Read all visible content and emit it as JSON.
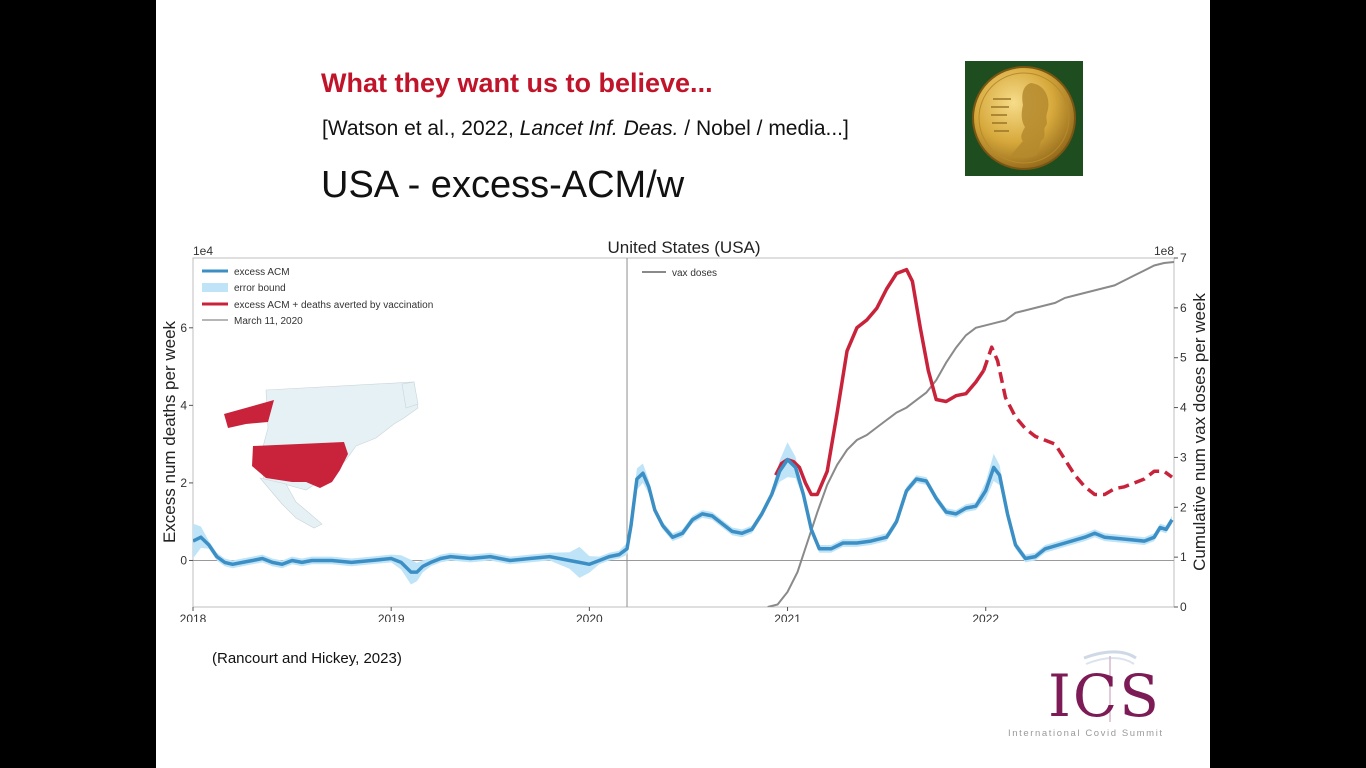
{
  "slide": {
    "headline": "What they want us to believe...",
    "citation_pre": "[Watson et al., 2022, ",
    "citation_em": "Lancet Inf. Deas.",
    "citation_post": " / Nobel / media...]",
    "subtitle": "USA  -  excess-ACM/w",
    "credit": "(Rancourt and Hickey, 2023)",
    "logo_text": "ICS",
    "logo_subtitle": "International Covid Summit",
    "medal_icon": "nobel-medal-icon"
  },
  "colors": {
    "headline": "#c0142b",
    "blue": "#3c8fc5",
    "red": "#c8233b",
    "band": "#bfe4f7",
    "gray": "#8a8a8a",
    "logo": "#7c1b55",
    "map_country": "#c8233b",
    "map_land": "#e6f1f5"
  },
  "chart_data": {
    "type": "line",
    "title": "United States (USA)",
    "ylabel": "Excess num deaths per week",
    "y2label": "Cumulative num vax doses per week",
    "ylim": [
      -1.2,
      7.8
    ],
    "y_scale_label": "1e4",
    "y2lim": [
      0,
      7
    ],
    "y2_scale_label": "1e8",
    "xlim": [
      2018.0,
      2022.95
    ],
    "x_ticks": [
      2018,
      2019,
      2020,
      2021,
      2022
    ],
    "x_tick_labels": [
      "2018",
      "2019",
      "2020",
      "2021",
      "2022"
    ],
    "y_ticks": [
      0,
      2,
      4,
      6
    ],
    "y_tick_labels": [
      "0",
      "2",
      "4",
      "6"
    ],
    "y2_ticks": [
      0,
      1,
      2,
      3,
      4,
      5,
      6,
      7
    ],
    "y2_tick_labels": [
      "0",
      "1",
      "2",
      "3",
      "4",
      "5",
      "6",
      "7"
    ],
    "vertical_line_x": 2020.19,
    "legend_left": [
      "excess ACM",
      "error bound",
      "excess ACM + deaths averted by vaccination",
      "March 11, 2020"
    ],
    "legend_right": [
      "vax doses"
    ],
    "excess_acm": [
      [
        2018.0,
        0.5
      ],
      [
        2018.04,
        0.6
      ],
      [
        2018.08,
        0.4
      ],
      [
        2018.12,
        0.1
      ],
      [
        2018.16,
        -0.05
      ],
      [
        2018.2,
        -0.1
      ],
      [
        2018.25,
        -0.05
      ],
      [
        2018.3,
        0.0
      ],
      [
        2018.35,
        0.05
      ],
      [
        2018.4,
        -0.05
      ],
      [
        2018.45,
        -0.1
      ],
      [
        2018.5,
        0.0
      ],
      [
        2018.55,
        -0.05
      ],
      [
        2018.6,
        0.0
      ],
      [
        2018.7,
        0.0
      ],
      [
        2018.8,
        -0.05
      ],
      [
        2018.9,
        0.0
      ],
      [
        2019.0,
        0.05
      ],
      [
        2019.05,
        -0.05
      ],
      [
        2019.1,
        -0.3
      ],
      [
        2019.13,
        -0.3
      ],
      [
        2019.16,
        -0.15
      ],
      [
        2019.2,
        -0.05
      ],
      [
        2019.25,
        0.05
      ],
      [
        2019.3,
        0.1
      ],
      [
        2019.4,
        0.05
      ],
      [
        2019.5,
        0.1
      ],
      [
        2019.6,
        0.0
      ],
      [
        2019.7,
        0.05
      ],
      [
        2019.8,
        0.1
      ],
      [
        2019.9,
        0.0
      ],
      [
        2019.95,
        -0.05
      ],
      [
        2020.0,
        -0.1
      ],
      [
        2020.05,
        0.0
      ],
      [
        2020.1,
        0.1
      ],
      [
        2020.15,
        0.15
      ],
      [
        2020.19,
        0.3
      ],
      [
        2020.21,
        0.9
      ],
      [
        2020.24,
        2.1
      ],
      [
        2020.27,
        2.25
      ],
      [
        2020.3,
        1.9
      ],
      [
        2020.33,
        1.3
      ],
      [
        2020.37,
        0.9
      ],
      [
        2020.42,
        0.6
      ],
      [
        2020.47,
        0.7
      ],
      [
        2020.52,
        1.05
      ],
      [
        2020.57,
        1.2
      ],
      [
        2020.62,
        1.15
      ],
      [
        2020.67,
        0.95
      ],
      [
        2020.72,
        0.75
      ],
      [
        2020.77,
        0.7
      ],
      [
        2020.82,
        0.8
      ],
      [
        2020.87,
        1.2
      ],
      [
        2020.92,
        1.7
      ],
      [
        2020.96,
        2.3
      ],
      [
        2021.0,
        2.6
      ],
      [
        2021.04,
        2.4
      ],
      [
        2021.08,
        1.7
      ],
      [
        2021.12,
        0.8
      ],
      [
        2021.16,
        0.3
      ],
      [
        2021.22,
        0.3
      ],
      [
        2021.28,
        0.45
      ],
      [
        2021.35,
        0.45
      ],
      [
        2021.42,
        0.5
      ],
      [
        2021.5,
        0.6
      ],
      [
        2021.55,
        1.0
      ],
      [
        2021.6,
        1.8
      ],
      [
        2021.65,
        2.1
      ],
      [
        2021.7,
        2.05
      ],
      [
        2021.75,
        1.6
      ],
      [
        2021.8,
        1.25
      ],
      [
        2021.85,
        1.2
      ],
      [
        2021.9,
        1.35
      ],
      [
        2021.95,
        1.4
      ],
      [
        2022.0,
        1.8
      ],
      [
        2022.04,
        2.4
      ],
      [
        2022.07,
        2.2
      ],
      [
        2022.11,
        1.2
      ],
      [
        2022.15,
        0.4
      ],
      [
        2022.2,
        0.05
      ],
      [
        2022.25,
        0.1
      ],
      [
        2022.3,
        0.3
      ],
      [
        2022.4,
        0.45
      ],
      [
        2022.5,
        0.6
      ],
      [
        2022.55,
        0.7
      ],
      [
        2022.6,
        0.6
      ],
      [
        2022.7,
        0.55
      ],
      [
        2022.8,
        0.5
      ],
      [
        2022.85,
        0.6
      ],
      [
        2022.88,
        0.85
      ],
      [
        2022.91,
        0.8
      ],
      [
        2022.94,
        1.05
      ]
    ],
    "averted_solid": [
      [
        2020.94,
        2.2
      ],
      [
        2020.97,
        2.5
      ],
      [
        2021.0,
        2.6
      ],
      [
        2021.03,
        2.55
      ],
      [
        2021.06,
        2.4
      ],
      [
        2021.09,
        2.0
      ],
      [
        2021.12,
        1.7
      ],
      [
        2021.15,
        1.7
      ],
      [
        2021.2,
        2.3
      ],
      [
        2021.25,
        3.8
      ],
      [
        2021.3,
        5.4
      ],
      [
        2021.35,
        6.0
      ],
      [
        2021.4,
        6.2
      ],
      [
        2021.45,
        6.5
      ],
      [
        2021.5,
        7.0
      ],
      [
        2021.55,
        7.4
      ],
      [
        2021.6,
        7.5
      ],
      [
        2021.63,
        7.2
      ],
      [
        2021.67,
        6.0
      ],
      [
        2021.71,
        4.9
      ],
      [
        2021.75,
        4.15
      ],
      [
        2021.8,
        4.1
      ],
      [
        2021.85,
        4.25
      ],
      [
        2021.9,
        4.3
      ],
      [
        2021.95,
        4.6
      ],
      [
        2021.99,
        4.9
      ]
    ],
    "averted_dashed": [
      [
        2021.99,
        4.9
      ],
      [
        2022.03,
        5.5
      ],
      [
        2022.06,
        5.15
      ],
      [
        2022.1,
        4.2
      ],
      [
        2022.15,
        3.7
      ],
      [
        2022.2,
        3.4
      ],
      [
        2022.25,
        3.2
      ],
      [
        2022.3,
        3.1
      ],
      [
        2022.35,
        3.0
      ],
      [
        2022.4,
        2.6
      ],
      [
        2022.45,
        2.2
      ],
      [
        2022.5,
        1.9
      ],
      [
        2022.55,
        1.7
      ],
      [
        2022.6,
        1.7
      ],
      [
        2022.65,
        1.85
      ],
      [
        2022.7,
        1.9
      ],
      [
        2022.75,
        2.0
      ],
      [
        2022.8,
        2.1
      ],
      [
        2022.85,
        2.3
      ],
      [
        2022.9,
        2.3
      ],
      [
        2022.94,
        2.15
      ]
    ],
    "vax_doses": [
      [
        2020.9,
        0.0
      ],
      [
        2020.95,
        0.05
      ],
      [
        2021.0,
        0.3
      ],
      [
        2021.05,
        0.7
      ],
      [
        2021.1,
        1.3
      ],
      [
        2021.15,
        1.9
      ],
      [
        2021.2,
        2.45
      ],
      [
        2021.25,
        2.85
      ],
      [
        2021.3,
        3.15
      ],
      [
        2021.35,
        3.35
      ],
      [
        2021.4,
        3.45
      ],
      [
        2021.45,
        3.6
      ],
      [
        2021.5,
        3.75
      ],
      [
        2021.55,
        3.9
      ],
      [
        2021.6,
        4.0
      ],
      [
        2021.65,
        4.15
      ],
      [
        2021.7,
        4.3
      ],
      [
        2021.75,
        4.55
      ],
      [
        2021.8,
        4.9
      ],
      [
        2021.85,
        5.2
      ],
      [
        2021.9,
        5.45
      ],
      [
        2021.95,
        5.6
      ],
      [
        2022.0,
        5.65
      ],
      [
        2022.05,
        5.7
      ],
      [
        2022.1,
        5.75
      ],
      [
        2022.15,
        5.9
      ],
      [
        2022.2,
        5.95
      ],
      [
        2022.25,
        6.0
      ],
      [
        2022.3,
        6.05
      ],
      [
        2022.35,
        6.1
      ],
      [
        2022.4,
        6.2
      ],
      [
        2022.45,
        6.25
      ],
      [
        2022.5,
        6.3
      ],
      [
        2022.55,
        6.35
      ],
      [
        2022.6,
        6.4
      ],
      [
        2022.65,
        6.45
      ],
      [
        2022.7,
        6.55
      ],
      [
        2022.75,
        6.65
      ],
      [
        2022.8,
        6.75
      ],
      [
        2022.85,
        6.85
      ],
      [
        2022.9,
        6.9
      ],
      [
        2022.95,
        6.92
      ]
    ],
    "error_bound_peaks": [
      [
        2018.0,
        0.5,
        0.35
      ],
      [
        2019.1,
        -0.3,
        0.22
      ],
      [
        2019.95,
        -0.05,
        0.3
      ],
      [
        2020.25,
        2.2,
        0.2
      ],
      [
        2021.0,
        2.6,
        0.35
      ],
      [
        2022.04,
        2.4,
        0.25
      ]
    ]
  }
}
